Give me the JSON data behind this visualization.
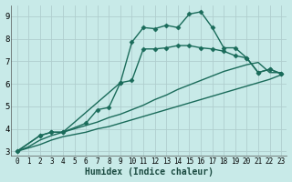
{
  "xlabel": "Humidex (Indice chaleur)",
  "background_color": "#c8eae8",
  "grid_color": "#b0cece",
  "line_color": "#1a6b5a",
  "xlim": [
    -0.5,
    23.5
  ],
  "ylim": [
    2.8,
    9.5
  ],
  "yticks": [
    3,
    4,
    5,
    6,
    7,
    8,
    9
  ],
  "xticks": [
    0,
    1,
    2,
    3,
    4,
    5,
    6,
    7,
    8,
    9,
    10,
    11,
    12,
    13,
    14,
    15,
    16,
    17,
    18,
    19,
    20,
    21,
    22,
    23
  ],
  "series": [
    {
      "x": [
        0,
        1,
        2,
        3,
        4,
        5,
        6,
        7,
        8,
        9,
        10,
        11,
        12,
        13,
        14,
        15,
        16,
        17,
        18,
        19,
        20,
        21,
        22,
        23
      ],
      "y": [
        3.0,
        3.15,
        3.3,
        3.5,
        3.65,
        3.75,
        3.85,
        4.0,
        4.1,
        4.25,
        4.4,
        4.55,
        4.7,
        4.85,
        5.0,
        5.15,
        5.3,
        5.45,
        5.6,
        5.75,
        5.9,
        6.05,
        6.2,
        6.4
      ],
      "marker": null,
      "linewidth": 1.0
    },
    {
      "x": [
        0,
        1,
        2,
        3,
        4,
        5,
        6,
        7,
        8,
        9,
        10,
        11,
        12,
        13,
        14,
        15,
        16,
        17,
        18,
        19,
        20,
        21,
        22,
        23
      ],
      "y": [
        3.0,
        3.2,
        3.5,
        3.7,
        3.85,
        4.0,
        4.15,
        4.3,
        4.5,
        4.65,
        4.85,
        5.05,
        5.3,
        5.5,
        5.75,
        5.95,
        6.15,
        6.35,
        6.55,
        6.7,
        6.85,
        6.95,
        6.5,
        6.5
      ],
      "marker": null,
      "linewidth": 1.0
    },
    {
      "x": [
        0,
        2,
        3,
        4,
        6,
        7,
        8,
        9,
        10,
        11,
        12,
        13,
        14,
        15,
        16,
        17,
        18,
        19,
        20,
        21,
        22,
        23
      ],
      "y": [
        3.0,
        3.7,
        3.85,
        3.85,
        4.25,
        4.85,
        4.95,
        6.05,
        6.15,
        7.55,
        7.55,
        7.6,
        7.7,
        7.7,
        7.6,
        7.55,
        7.45,
        7.25,
        7.15,
        6.5,
        6.65,
        6.45
      ],
      "marker": "D",
      "linewidth": 1.0,
      "markersize": 2.5
    },
    {
      "x": [
        0,
        2,
        3,
        4,
        9,
        10,
        11,
        12,
        13,
        14,
        15,
        16,
        17,
        18,
        19,
        20,
        21,
        22,
        23
      ],
      "y": [
        3.0,
        3.7,
        3.85,
        3.85,
        6.05,
        7.85,
        8.5,
        8.45,
        8.6,
        8.5,
        9.1,
        9.2,
        8.5,
        7.6,
        7.6,
        7.15,
        6.5,
        6.65,
        6.45
      ],
      "marker": "D",
      "linewidth": 1.0,
      "markersize": 2.5
    }
  ]
}
